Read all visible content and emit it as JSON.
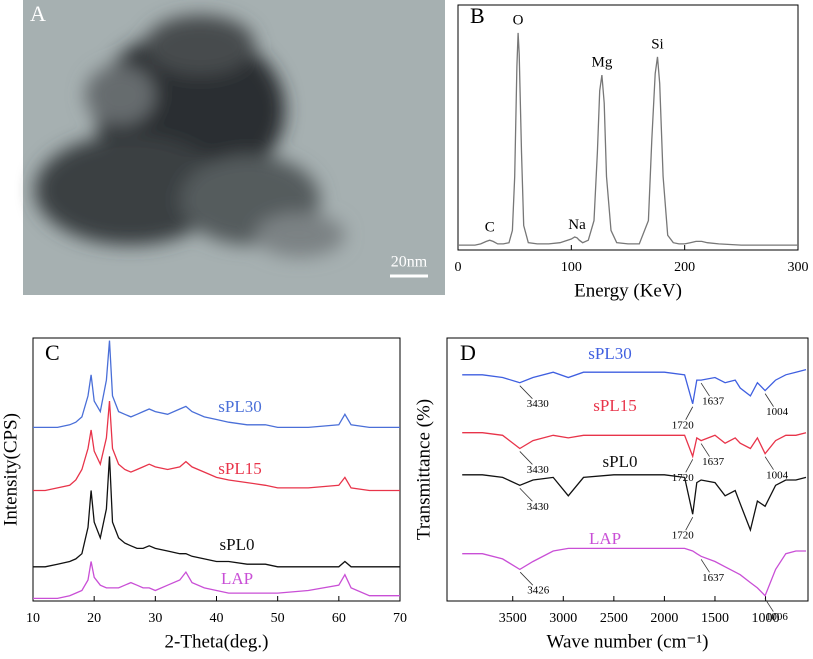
{
  "image_panel": {
    "label": "A",
    "scale_bar": "20nm"
  },
  "chart_data": [
    {
      "type": "line",
      "label": "B",
      "xlabel": "Energy (KeV)",
      "x": [
        0,
        5,
        10,
        15,
        20,
        25,
        28,
        31,
        35,
        40,
        45,
        48,
        50,
        52,
        53,
        54,
        56,
        58,
        62,
        70,
        80,
        90,
        100,
        103,
        105,
        107,
        110,
        115,
        120,
        123,
        125,
        127,
        129,
        131,
        135,
        140,
        150,
        160,
        168,
        171,
        174,
        176,
        178,
        181,
        185,
        190,
        195,
        200,
        205,
        210,
        215,
        220,
        230,
        250,
        275,
        300
      ],
      "values": [
        2,
        2,
        2,
        2,
        2.5,
        3.5,
        4,
        3.5,
        2.5,
        2.5,
        3,
        8,
        30,
        75,
        88.6,
        80,
        40,
        10,
        3,
        2.5,
        2.5,
        3,
        4.5,
        5.3,
        5,
        4,
        3,
        4,
        12,
        40,
        65,
        71.4,
        60,
        30,
        8,
        3,
        2.5,
        2.5,
        12,
        45,
        72,
        78.8,
        68,
        30,
        6,
        3,
        2.5,
        2.5,
        3,
        3.5,
        3.5,
        3,
        2.5,
        2,
        2,
        2
      ],
      "color": "#777777",
      "annotations": [
        {
          "label": "C",
          "x": 28
        },
        {
          "label": "O",
          "x": 53
        },
        {
          "label": "Na",
          "x": 105
        },
        {
          "label": "Mg",
          "x": 127
        },
        {
          "label": "Si",
          "x": 176
        }
      ],
      "xlim": [
        0,
        300
      ],
      "ylim": [
        0,
        100
      ],
      "xticks": [
        0,
        100,
        200,
        300
      ]
    },
    {
      "type": "line",
      "label": "C",
      "xlabel": "2-Theta(deg.)",
      "ylabel": "Intensity(CPS)",
      "x": [
        10,
        12,
        14,
        16,
        17,
        18,
        19,
        19.5,
        20,
        21,
        22,
        22.5,
        23,
        24,
        25,
        26,
        27,
        28,
        29,
        30,
        32,
        34,
        35,
        36,
        38,
        40,
        42,
        45,
        48,
        50,
        55,
        60,
        61,
        62,
        65,
        70
      ],
      "series": [
        {
          "name": "sPL30",
          "color": "#4a6fd8",
          "values": [
            66,
            66,
            66,
            67,
            68,
            70,
            78,
            86,
            76,
            72,
            84,
            99,
            78,
            72,
            71,
            70,
            71,
            72,
            73,
            72,
            71,
            73,
            74,
            72,
            70,
            69,
            68,
            67,
            67,
            66,
            66,
            67,
            71,
            67,
            66,
            66
          ]
        },
        {
          "name": "sPL15",
          "color": "#e8344a",
          "values": [
            42,
            42,
            43,
            44,
            46,
            50,
            58,
            65,
            57,
            52,
            62,
            76,
            58,
            52,
            50,
            49,
            50,
            51,
            52,
            51,
            50,
            51,
            53,
            51,
            49,
            47,
            46,
            45,
            44,
            43,
            43,
            44,
            47,
            43,
            42,
            42
          ]
        },
        {
          "name": "sPL0",
          "color": "#111111",
          "values": [
            13,
            13,
            14,
            15,
            16,
            18,
            28,
            42,
            30,
            24,
            35,
            55,
            30,
            24,
            22,
            21,
            20,
            20,
            21,
            20,
            19,
            18,
            18,
            17,
            16,
            15,
            15,
            14,
            14,
            13,
            13,
            13,
            15,
            13,
            13,
            13
          ]
        },
        {
          "name": "LAP",
          "color": "#c94fd6",
          "values": [
            1,
            1,
            1,
            2,
            3,
            4,
            8,
            15,
            9,
            6,
            5,
            5,
            5,
            5,
            6,
            7,
            6,
            5,
            5,
            4,
            6,
            8,
            11,
            7,
            5,
            4,
            3,
            3,
            3,
            3,
            4,
            6,
            10,
            5,
            2,
            2
          ]
        }
      ],
      "xlim": [
        10,
        70
      ],
      "ylim": [
        0,
        100
      ],
      "xticks": [
        10,
        20,
        30,
        40,
        50,
        60,
        70
      ]
    },
    {
      "type": "line",
      "label": "D",
      "xlabel": "Wave number (cm⁻¹)",
      "ylabel": "Transmittance (%)",
      "x": [
        4000,
        3800,
        3600,
        3430,
        3300,
        3100,
        2950,
        2800,
        2500,
        2200,
        2000,
        1800,
        1720,
        1680,
        1637,
        1500,
        1400,
        1300,
        1250,
        1150,
        1080,
        1004,
        900,
        800,
        700,
        600
      ],
      "series": [
        {
          "name": "sPL30",
          "color": "#3f5fe0",
          "values": [
            86,
            86,
            85,
            83,
            85,
            87,
            85,
            87,
            87,
            87,
            87,
            86,
            75,
            84,
            84,
            85,
            83,
            84,
            81,
            78,
            83,
            80,
            84,
            86,
            87,
            88
          ],
          "annotations": [
            3430,
            1720,
            1637,
            1004
          ]
        },
        {
          "name": "sPL15",
          "color": "#e8344a",
          "values": [
            64,
            64,
            63,
            58,
            61,
            63,
            62,
            63,
            63,
            63,
            63,
            63,
            55,
            62,
            61,
            63,
            60,
            62,
            60,
            58,
            62,
            56,
            61,
            63,
            63,
            64
          ],
          "annotations": [
            3430,
            1720,
            1637,
            1004
          ]
        },
        {
          "name": "sPL0",
          "color": "#111111",
          "values": [
            48,
            48,
            47,
            44,
            46,
            47,
            40,
            47,
            48,
            48,
            48,
            47,
            33,
            45,
            46,
            45,
            40,
            42,
            37,
            27,
            38,
            36,
            44,
            46,
            46,
            47
          ],
          "annotations": [
            3430,
            1720
          ]
        },
        {
          "name": "LAP",
          "color": "#c94fd6",
          "values": [
            18,
            18,
            16,
            12,
            15,
            19,
            20,
            20,
            20,
            20,
            20,
            20,
            19,
            18,
            17,
            15,
            13,
            11,
            10,
            7,
            5,
            2,
            12,
            18,
            19,
            19
          ],
          "annotations": [
            3426,
            1637,
            1006
          ]
        }
      ],
      "xlim": [
        4150,
        580
      ],
      "ylim": [
        0,
        100
      ],
      "xticks": [
        3500,
        3000,
        2500,
        2000,
        1500,
        1000
      ]
    }
  ]
}
